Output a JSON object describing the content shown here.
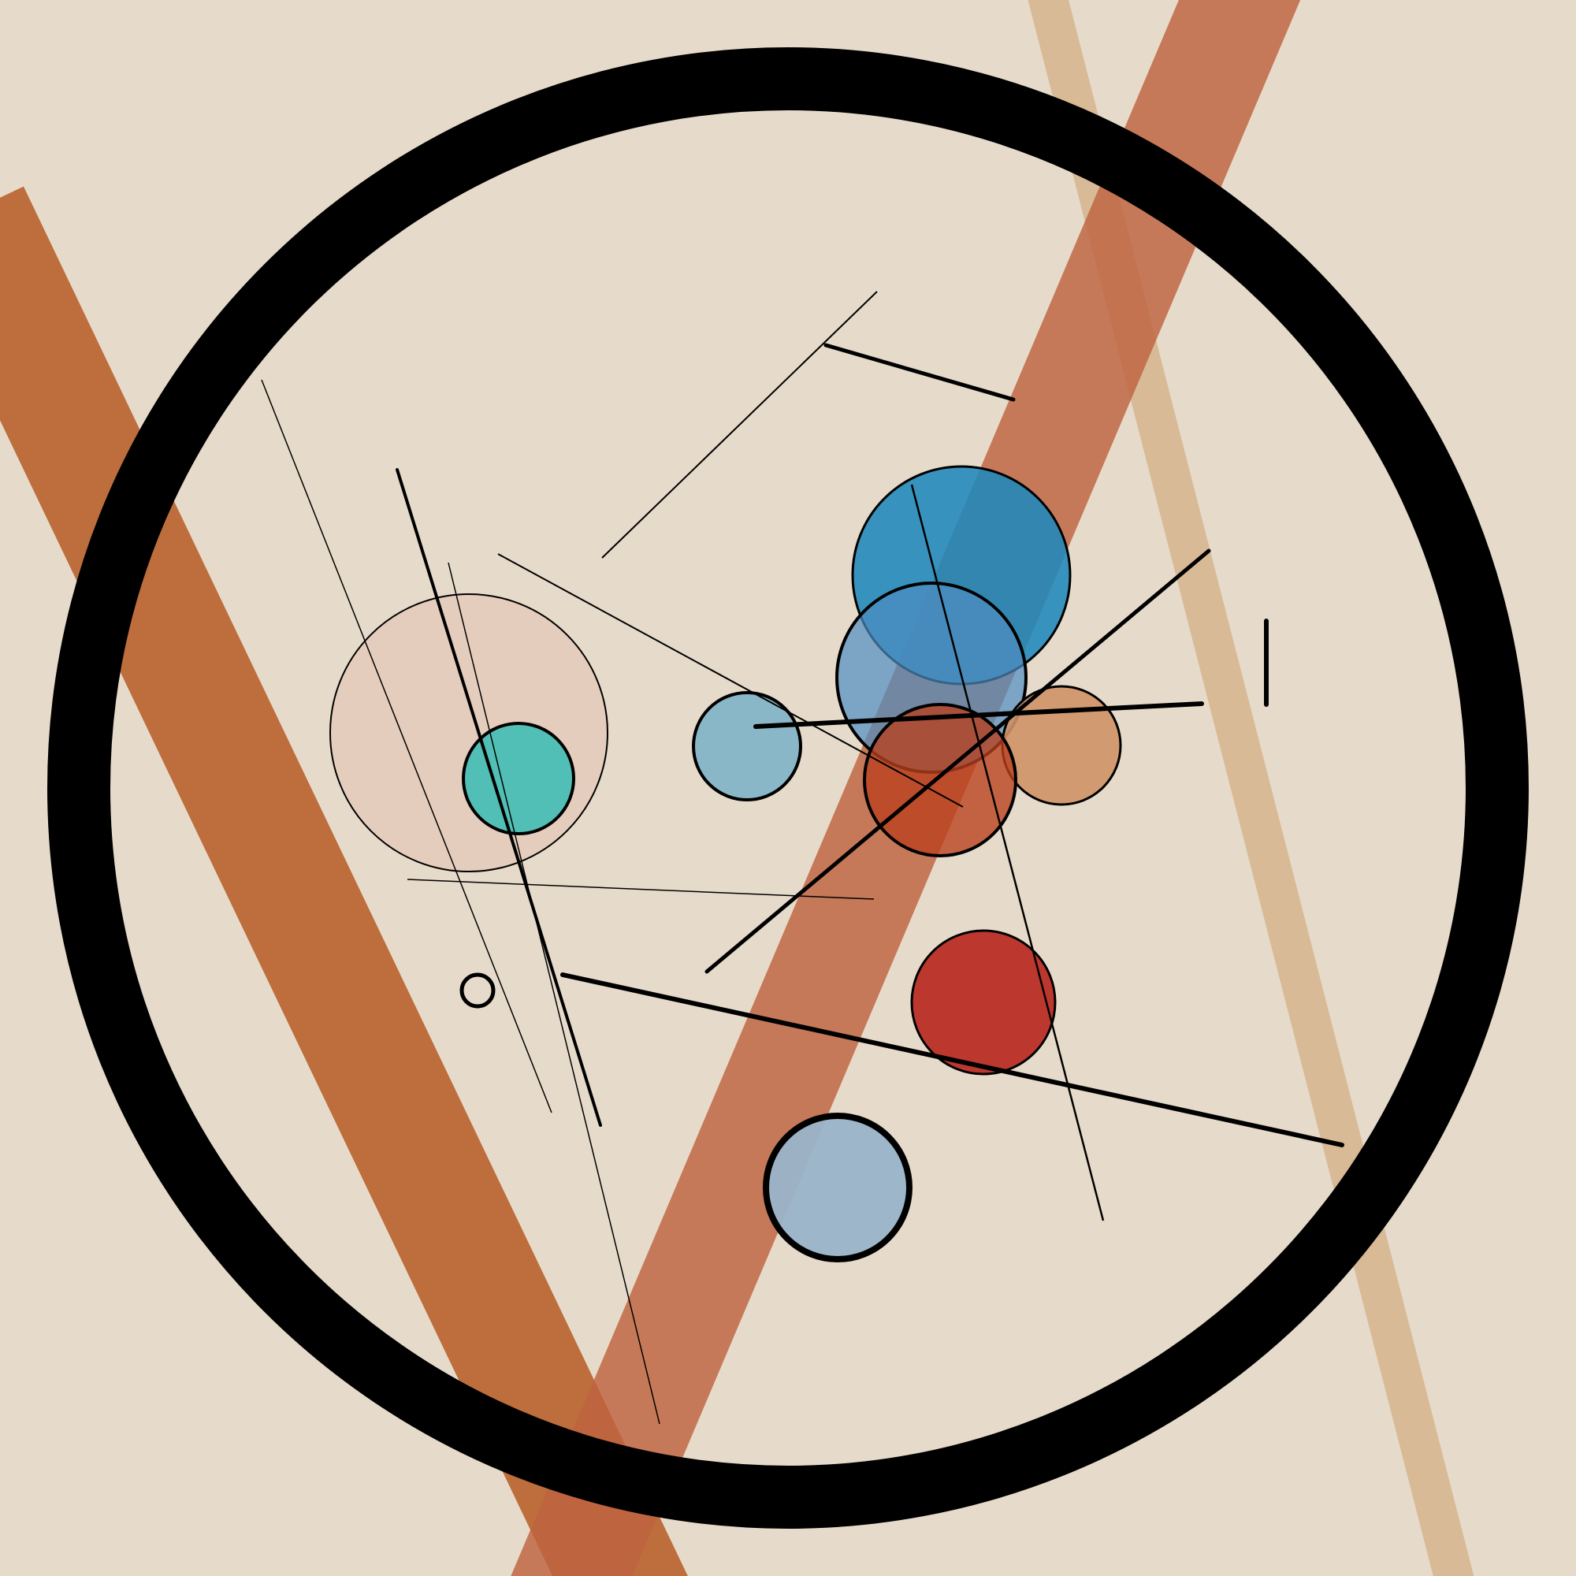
{
  "artwork": {
    "background_color": "#e6dbca",
    "ring_color": "#000000",
    "band_colors": [
      "#bd6e3c",
      "#bf6440",
      "#d8b995"
    ],
    "circle_colors": {
      "large_blue": "#1f87bb",
      "mid_blue": "#4e8dc2",
      "pale_blue_small": "#7fb3c6",
      "teal": "#37bcb5",
      "rust": "#b8401d",
      "tan": "#cf9266",
      "red": "#b92a22",
      "gray_blue": "#9ab4c9",
      "pale_pink": "#e4c8b8",
      "small_ring_fill": "#e6dbca"
    },
    "line_color": "#000000"
  }
}
